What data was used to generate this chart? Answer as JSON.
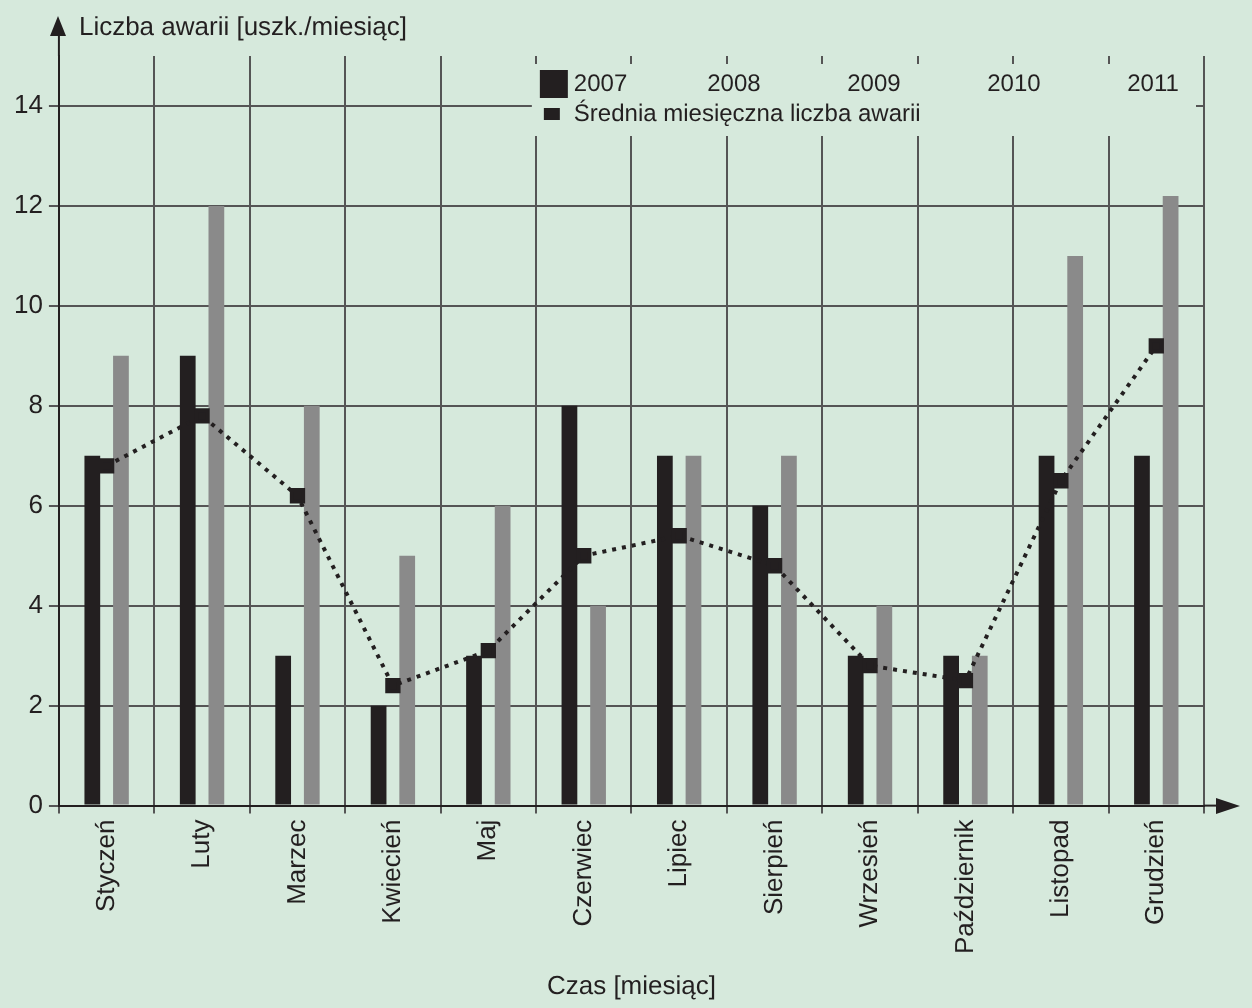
{
  "chart_data": {
    "type": "bar",
    "ylabel": "Liczba awarii [uszk./miesiąc]",
    "xlabel": "Czas [miesiąc]",
    "categories": [
      "Styczeń",
      "Luty",
      "Marzec",
      "Kwiecień",
      "Maj",
      "Czerwiec",
      "Lipiec",
      "Sierpień",
      "Wrzesień",
      "Październik",
      "Listopad",
      "Grudzień"
    ],
    "series": [
      {
        "name": "2007",
        "color": "#231f20",
        "values": [
          7,
          9,
          3,
          2,
          3,
          8,
          7,
          6,
          3,
          3,
          7,
          7
        ]
      },
      {
        "color": "#8a8a8a",
        "values": [
          9,
          12,
          8,
          5,
          6,
          4,
          7,
          7,
          4,
          3,
          11,
          12.2
        ]
      },
      {
        "name": "Średnia miesięczna liczba awarii",
        "type": "line",
        "color": "#231f20",
        "values": [
          6.8,
          7.8,
          6.2,
          2.4,
          3.1,
          5.0,
          5.4,
          4.8,
          2.8,
          2.5,
          6.5,
          9.2
        ]
      }
    ],
    "annotations": [
      "2008",
      "2009",
      "2010",
      "2011"
    ],
    "ylim": [
      0,
      15
    ],
    "yticks": [
      0,
      2,
      4,
      6,
      8,
      10,
      12,
      14
    ],
    "grid": true,
    "legend": "top",
    "marker": "square",
    "line_style": "dotted"
  }
}
